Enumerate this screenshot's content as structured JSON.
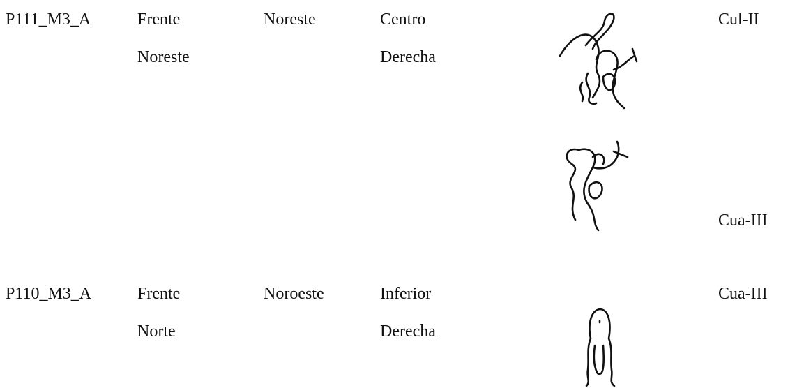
{
  "table": {
    "rows": [
      {
        "id": "P111_M3_A",
        "face": [
          "Frente",
          "Noreste"
        ],
        "orientation": "Noreste",
        "position": [
          "Centro",
          "Derecha"
        ],
        "type": "Cul-II"
      },
      {
        "type": "Cua-III"
      },
      {
        "id": "P110_M3_A",
        "face": [
          "Frente",
          "Norte"
        ],
        "orientation": "Noroeste",
        "position": [
          "Inferior",
          "Derecha"
        ],
        "type": "Cua-III"
      }
    ]
  }
}
